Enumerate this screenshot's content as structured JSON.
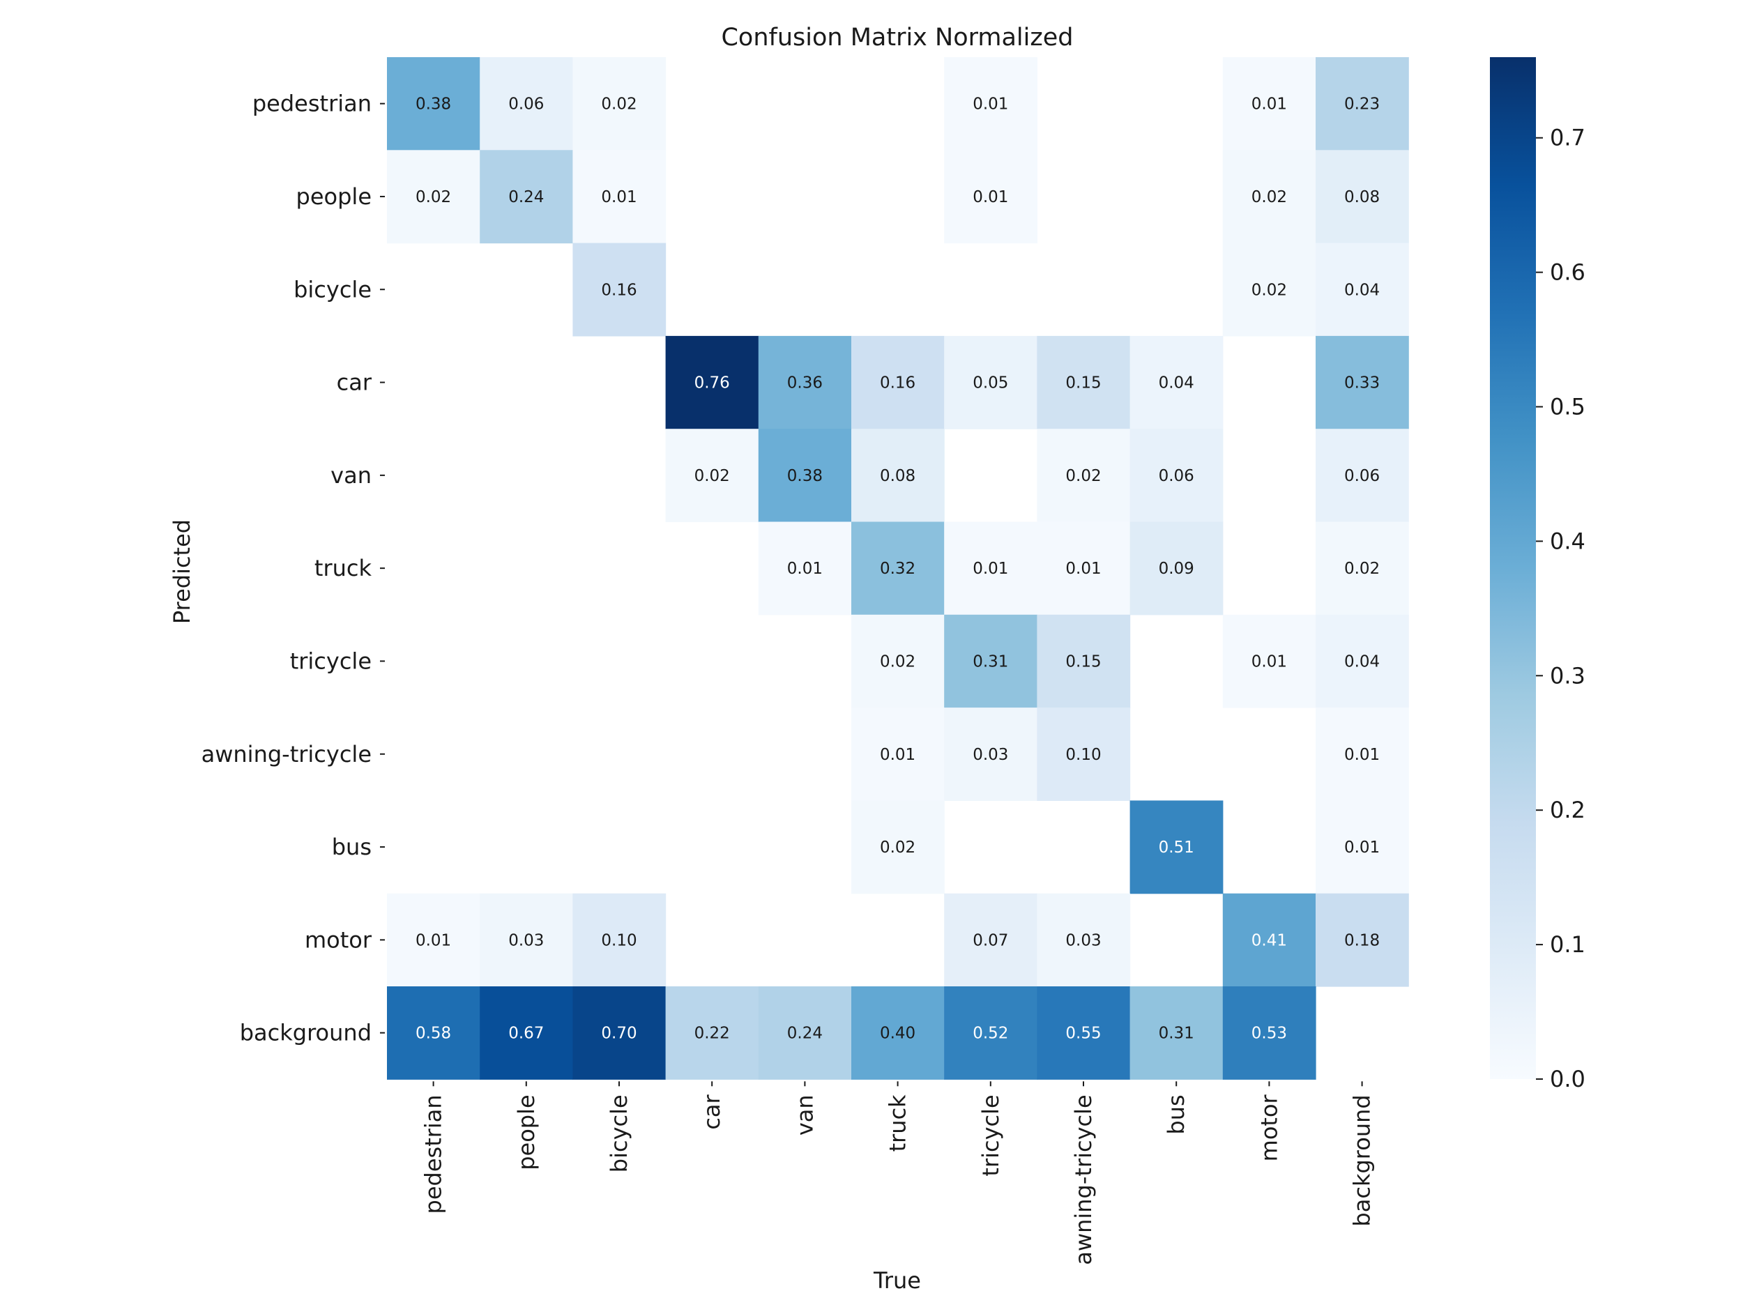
{
  "chart_data": {
    "type": "heatmap",
    "title": "Confusion Matrix Normalized",
    "xlabel": "True",
    "ylabel": "Predicted",
    "x_categories": [
      "pedestrian",
      "people",
      "bicycle",
      "car",
      "van",
      "truck",
      "tricycle",
      "awning-tricycle",
      "bus",
      "motor",
      "background"
    ],
    "y_categories": [
      "pedestrian",
      "people",
      "bicycle",
      "car",
      "van",
      "truck",
      "tricycle",
      "awning-tricycle",
      "bus",
      "motor",
      "background"
    ],
    "values": [
      [
        0.38,
        0.06,
        0.02,
        null,
        null,
        null,
        0.01,
        null,
        null,
        0.01,
        0.23
      ],
      [
        0.02,
        0.24,
        0.01,
        null,
        null,
        null,
        0.01,
        null,
        null,
        0.02,
        0.08
      ],
      [
        null,
        null,
        0.16,
        null,
        null,
        null,
        null,
        null,
        null,
        0.02,
        0.04
      ],
      [
        null,
        null,
        null,
        0.76,
        0.36,
        0.16,
        0.05,
        0.15,
        0.04,
        null,
        0.33
      ],
      [
        null,
        null,
        null,
        0.02,
        0.38,
        0.08,
        null,
        0.02,
        0.06,
        null,
        0.06
      ],
      [
        null,
        null,
        null,
        null,
        0.01,
        0.32,
        0.01,
        0.01,
        0.09,
        null,
        0.02
      ],
      [
        null,
        null,
        null,
        null,
        null,
        0.02,
        0.31,
        0.15,
        null,
        0.01,
        0.04
      ],
      [
        null,
        null,
        null,
        null,
        null,
        0.01,
        0.03,
        0.1,
        null,
        null,
        0.01
      ],
      [
        null,
        null,
        null,
        null,
        null,
        0.02,
        null,
        null,
        0.51,
        null,
        0.01
      ],
      [
        0.01,
        0.03,
        0.1,
        null,
        null,
        null,
        0.07,
        0.03,
        null,
        0.41,
        0.18
      ],
      [
        0.58,
        0.67,
        0.7,
        0.22,
        0.24,
        0.4,
        0.52,
        0.55,
        0.31,
        0.53,
        null
      ]
    ],
    "colorbar": {
      "range": [
        0,
        0.76
      ],
      "ticks": [
        "0.0",
        "0.1",
        "0.2",
        "0.3",
        "0.4",
        "0.5",
        "0.6",
        "0.7"
      ],
      "colormap": "Blues"
    },
    "grid": false,
    "legend": "colorbar-right"
  }
}
